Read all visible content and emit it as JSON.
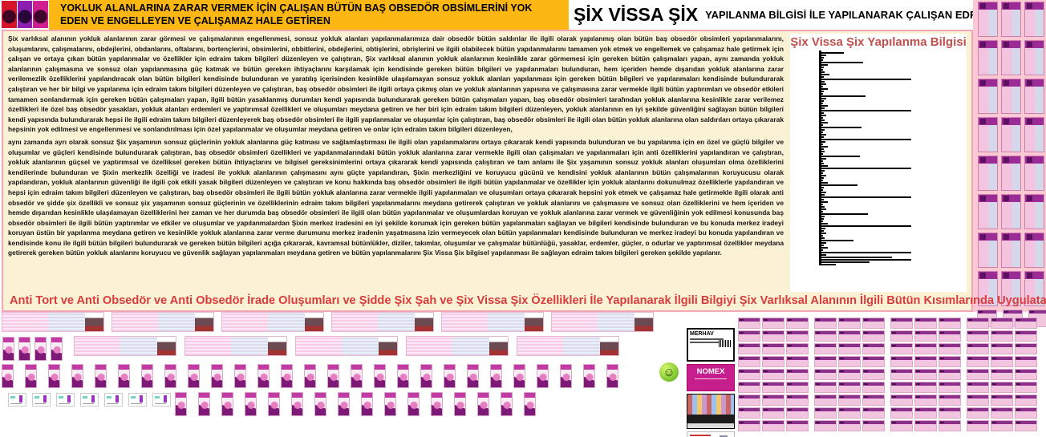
{
  "header": {
    "left_title": "YOKLUK ALANLARINA ZARAR VERMEK İÇİN ÇALIŞAN BÜTÜN BAŞ OBSEDÖR OBSİMLERİNİ YOK EDEN VE ENGELLEYEN VE ÇALIŞAMAZ HALE GETİREN",
    "right_title_main": "ŞİX VİSSA ŞİX",
    "right_title_sub": "YAPILANMA BİLGİSİ İLE YAPILANARAK ÇALIŞAN EDRAİM TAKIM BİLGİLERİ"
  },
  "body": {
    "paragraph1": "Şix varlıksal alanının yokluk alanlarının zarar görmesi ve çalışmalarının engellenmesi, sonsuz yokluk alanları yapılanmalarımıza dair obsedör bütün saldırılar ile ilgili olarak yapılanmış olan bütün baş obsedör obsimleri yapılanmalarını, oluşumlarını, çalışmalarını, obdejlerini, obdanlarını, oftalarını, bortençlerini, obsimlerini, obbitlerini, obdejlerini, obtişlerini, obrişlerini ve ilgili olabilecek bütün yapılanmalarını tamamen yok etmek ve engellemek ve çalışamaz hale getirmek için çalışan ve ortaya çıkan bütün yapılanmalar ve özellikler için edraim takım bilgileri düzenleyen ve çalıştıran, Şix varlıksal alanının yokluk alanlarının kesinlikle zarar görmemesi için gereken bütün çalışmaları yapan, aynı zamanda yokluk alanlarının çalışmasına ve sonsuz olan yapılanmasına güç katmak ve bütün gereken ihtiyaçlarını karşılamak için kendisinde gereken bütün bilgileri ve yapılanmaları bulunduran, hem içeriden hemde dışarıdan yokluk alanlarına zarar verilemezlik özelliklerini yapılandıracak olan bütün bilgileri kendisinde bulunduran ve yaratılış içerisinden kesinlikle ulaşılamayan sonsuz yokluk alanları yapılanması için gereken bütün bilgileri ve yapılanmaları kendisinde bulundurarak çalıştıran ve her bir bilgi ve yapılanma için edraim takım bilgileri düzenleyen ve çalıştıran, baş obsedör obsimleri ile ilgili ortaya çıkmış olan ve yokluk alanlarının yapısına ve çalışmasına zarar vermekle ilgili bütün yaptırımları ve obsedör etkileri tamamen sonlandırmak için gereken bütün çalışmaları yapan, ilgili bütün yasaklanmış durumları kendi yapısında bulundurarak gereken bütün çalışmaları yapan, baş obsedör obsimleri tarafından yokluk alanlarına kesinlikle zarar verilemez özellikleri ile özel baş obsedör yasakları, yokluk alanları erdemleri ve yaptırımsal özellikleri ve oluşumları meydana getiren ve her biri için edraim takım bilgileri düzenleyen, yokluk alanlarının en iyi şekilde güvenliğini sağlayan bütün bilgileri kendi yapısında bulundurarak hepsi ile ilgili edraim takım bilgileri düzenleyerek baş obsedör obsimleri ile ilgili yapılanmalar ve oluşumlar için çalıştıran, baş obsedör obsimleri ile ilgili olan bütün yokluk alanlarına olan saldırıları ortaya çıkararak hepsinin yok edilmesi ve engellenmesi ve sonlandırılması için özel yapılanmalar ve oluşumlar meydana getiren ve onlar için edraim takım bilgileri düzenleyen,",
    "paragraph2": " aynı zamanda ayrı olarak sonsuz Şix yaşamının sonsuz güçlerinin yokluk alanlarına güç katması ve sağlamlaştırması ile ilgili olan yapılanmalarını ortaya çıkararak kendi yapısında bulunduran ve bu yapılanma için en özel ve güçlü bilgiler ve oluşumlar ve güçleri kendisinde bulundurarak çalıştıran, baş obsedör obsimleri özellikleri ve yapılanmalarındaki bütün yokluk alanlarına zarar vermekle ilgili olan çalışmaları ve yapılanmaları için anti özelliklerini yapılandıran ve çalıştıran, yokluk alanlarının güçsel ve yaptırımsal ve özelliksel gereken bütün ihtiyaçlarını ve bilgisel gereksinimlerini ortaya çıkararak kendi yapısında çalıştıran ve tam anlamı ile Şix yaşamının sonsuz yokluk alanları oluşumları olma özelliklerini kendilerinde bulunduran ve Şixin merkezlik özelliği ve iradesi ile yokluk alanlarının çalışmasını aynı güçte yapılandıran, Şixin merkezliğini ve koruyucu gücünü ve kendisini yokluk alanlarının bütün çalışmalarının koruyucusu olarak yapılandıran, yokluk alanlarının güvenliği ile ilgili çok etkili yasak bilgileri düzenleyen ve çalıştıran ve konu hakkında baş obsedör obsimleri ile ilgili bütün yapılanmalar ve özellikler için yokluk alanlarını dokunulmaz özelliklerle yapılandıran ve hepsi için edraim takım bilgileri düzenleyen ve çalıştıran, baş obsedör obsimleri ile ilgili bütün yokluk alanlarına zarar vermekle ilgili yapılanmaları ve oluşumları ortaya çıkararak hepsini yok etmek ve çalışamaz hale getirmekle ilgili olarak anti obsedör ve şidde şix özellikli ve sonsuz şix yaşamının sonsuz güçlerinin ve özelliklerinin edraim takım bilgileri yapılanmalarını meydana getirerek çalıştıran ve yokluk alanlarını ve çalışmasını ve sonsuz olan özelliklerini ve hem içeriden ve hemde dışarıdan kesinlikle ulaşılamayan özelliklerini her zaman ve her durumda baş obsedör obsimleri ile ilgili olan bütün yapılanmalar ve oluşumlardan koruyan ve yokluk alanlarına zarar vermek ve güvenliğinin yok edilmesi konusunda baş obsedör obsimleri ile ilgili bütün yaptırımlar ve etkiler ve oluşumlar ve yapılanmalardan Şixin merkez iradesini en iyi şekilde korumak için gereken bütün yapılanmaları sağlayan ve bilgileri kendisinde bulunduran ve bu konuda merkez iradeyi koruyan üstün bir yapılanma meydana getiren ve kesinlikle yokluk alanlarına zarar verme durumunu merkez iradenin yaşatmasına izin vermeyecek olan bütün yapılanmaları kendisinde bulunduran ve merkez iradeyi bu konuda yapılandıran ve kendisinde konu ile ilgili bütün bilgileri bulundurarak ve gereken bütün bilgileri açığa çıkararak, kavramsal bütünlükler, diziler, takımlar, oluşumlar ve çalışmalar bütünlüğü, yasaklar, erdemler, güçler, o odurlar ve yaptırımsal özellikler meydana getirerek gereken bütün yokluk alanlarını koruyucu ve güvenlik sağlayan yapılanmaları meydana getiren ve bütün yapılanmalarını Şix Vissa Şix bilgisel yapılanması ile sağlayan edraim takım bilgileri gereken şekilde yapılanır."
  },
  "footer_line": "Anti Tort ve Anti Obsedör ve Anti Obsedör İrade Oluşumları ve Şidde Şix Şah ve Şix Vissa Şix Özellikleri İle Yapılanarak İlgili Bilgiyi Şix Varlıksal Alanının İlgili Bütün Kısımlarında Uygulatan Edraim Takım Bilgileri Yapılanması",
  "chart_data": {
    "type": "bar",
    "orientation": "horizontal",
    "title": "Şix Vissa Şix Yapılanma Bilgisi",
    "xlabel": "",
    "ylabel": "",
    "axis_labels_visible": false,
    "value_unit": "px-length-estimate",
    "values": [
      28,
      6,
      3,
      2,
      52,
      8,
      3,
      2,
      4,
      10,
      3,
      112,
      4,
      6,
      2,
      8,
      3,
      2,
      55,
      6,
      3,
      2,
      8,
      4,
      112,
      3,
      6,
      2,
      4,
      8,
      2,
      50,
      4,
      2,
      6,
      3,
      112,
      5,
      2,
      8,
      3,
      4,
      2,
      48,
      6,
      2,
      3,
      8,
      112,
      4,
      2,
      6,
      3,
      2,
      8,
      45,
      3,
      2,
      6,
      4,
      112,
      3,
      8,
      2,
      4,
      6,
      2,
      58,
      4,
      3,
      2,
      8,
      112,
      5,
      3,
      6,
      2,
      4,
      40,
      6,
      3,
      8,
      2,
      112,
      6,
      88,
      112,
      60,
      18
    ]
  },
  "cards": {
    "merhav_label": "MERHAV",
    "nomex_label": "NOMEX"
  },
  "icons": {
    "smiley-icon": "☺"
  },
  "galleries": {
    "right_strip": {
      "cols": 3,
      "rows": 8
    },
    "row_a_wide_cards": 6,
    "row_b_purple_boxes": 4,
    "row_b_wide_cards": 5,
    "row_c_purple_boxes": 27,
    "row_d_mini_cards": 7,
    "row_d_purple_boxes": 16,
    "corner_thumbs": 3,
    "dense_grid": {
      "cols": 12,
      "rows": 9
    }
  },
  "theme": {
    "amber": "#FDB713",
    "cream": "#FBF2D6",
    "pink-border": "#F1A7B6",
    "strip-pink": "#FBC9D3",
    "footer-red": "#D93B3B",
    "panel-title-red": "#C0504D",
    "magenta": "#C71E8E",
    "thumb-purple": "#9B2C96"
  }
}
